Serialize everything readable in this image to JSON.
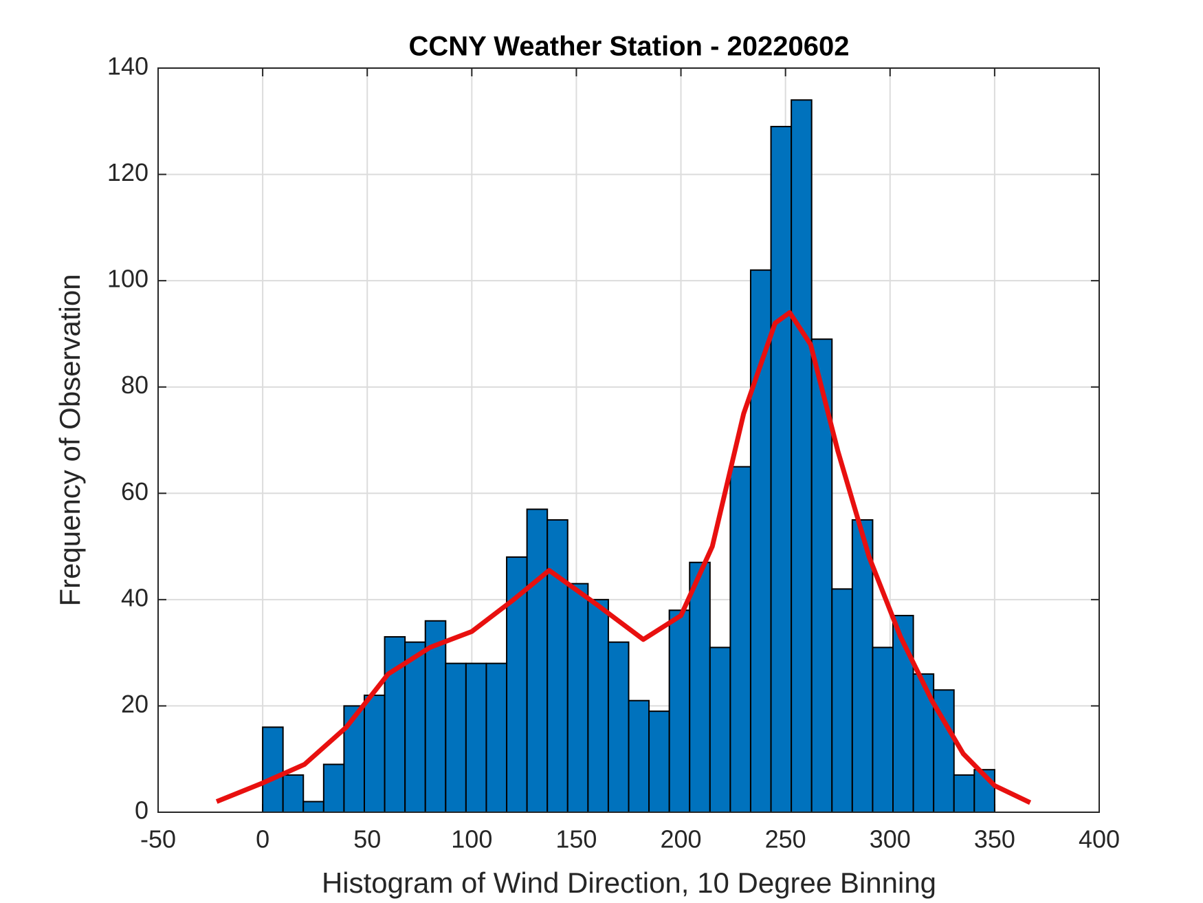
{
  "chart_data": {
    "type": "histogram",
    "title": "CCNY Weather Station - 20220602",
    "xlabel": "Histogram of Wind Direction, 10 Degree Binning",
    "ylabel": "Frequency of Observation",
    "bins": [
      0,
      9.72,
      19.44,
      29.17,
      38.89,
      48.61,
      58.33,
      68.06,
      77.78,
      87.5,
      97.22,
      106.94,
      116.67,
      126.39,
      136.11,
      145.83,
      155.56,
      165.28,
      175,
      184.72,
      194.44,
      204.17,
      213.89,
      223.61,
      233.33,
      243.06,
      252.78,
      262.5,
      272.22,
      281.94,
      291.67,
      301.39,
      311.11,
      320.83,
      330.56,
      340.28,
      350
    ],
    "values": [
      16,
      7,
      2,
      9,
      20,
      22,
      33,
      32,
      36,
      28,
      28,
      28,
      48,
      57,
      55,
      43,
      40,
      32,
      21,
      19,
      38,
      47,
      31,
      65,
      102,
      129,
      134,
      89,
      42,
      55,
      31,
      37,
      26,
      23,
      7,
      8
    ],
    "color": "#0072bd",
    "line": {
      "color": "#e8100f",
      "x": [
        -22,
        0,
        20,
        40,
        60,
        80,
        100,
        120,
        137,
        160,
        182,
        200,
        215,
        230,
        245,
        252,
        262,
        275,
        290,
        305,
        320,
        335,
        350,
        367
      ],
      "values": [
        2,
        5.5,
        9,
        16,
        26,
        31,
        34,
        40,
        45.5,
        39,
        32.5,
        37,
        50,
        75,
        92,
        94,
        88,
        68,
        48,
        33,
        21,
        11,
        5,
        1.8
      ]
    },
    "xlim": [
      -50,
      400
    ],
    "xticks": [
      -50,
      0,
      50,
      100,
      150,
      200,
      250,
      300,
      350,
      400
    ],
    "ylim": [
      0,
      140
    ],
    "yticks": [
      0,
      20,
      40,
      60,
      80,
      100,
      120,
      140
    ],
    "grid": true
  }
}
